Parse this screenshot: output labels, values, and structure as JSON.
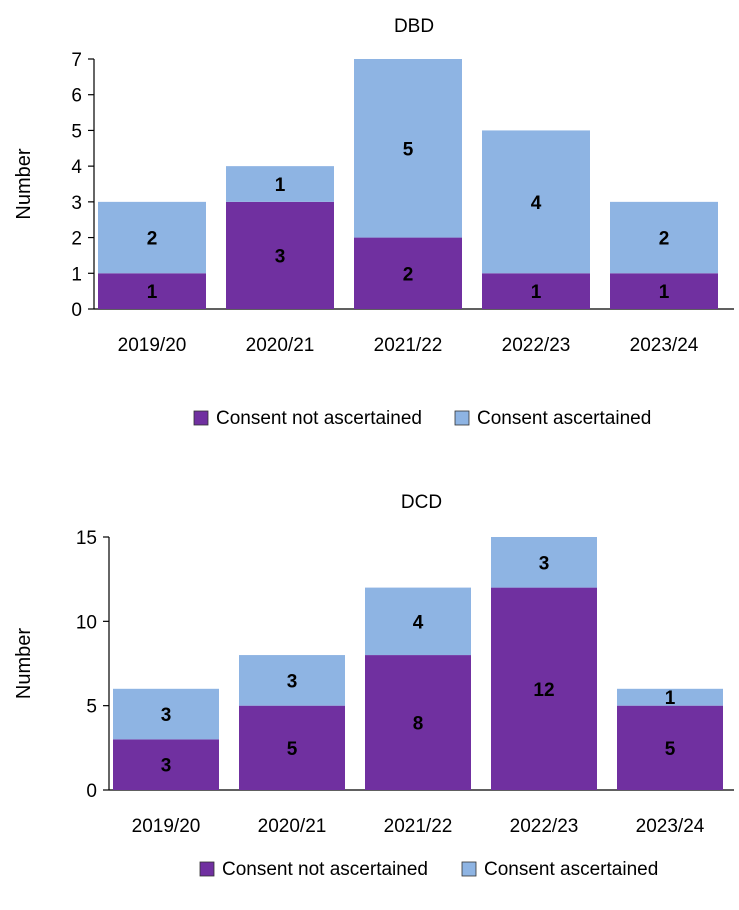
{
  "chart_data": [
    {
      "type": "bar",
      "stacked": true,
      "title": "DBD",
      "ylabel": "Number",
      "xlabel": "",
      "ylim": [
        0,
        7
      ],
      "yticks": [
        0,
        1,
        2,
        3,
        4,
        5,
        6,
        7
      ],
      "categories": [
        "2019/20",
        "2020/21",
        "2021/22",
        "2022/23",
        "2023/24"
      ],
      "series": [
        {
          "name": "Consent not ascertained",
          "color": "#7030A0",
          "values": [
            1,
            3,
            2,
            1,
            1
          ]
        },
        {
          "name": "Consent ascertained",
          "color": "#8EB4E3",
          "values": [
            2,
            1,
            5,
            4,
            2
          ]
        }
      ],
      "legend_position": "bottom"
    },
    {
      "type": "bar",
      "stacked": true,
      "title": "DCD",
      "ylabel": "Number",
      "xlabel": "",
      "ylim": [
        0,
        15
      ],
      "yticks": [
        0,
        5,
        10,
        15
      ],
      "categories": [
        "2019/20",
        "2020/21",
        "2021/22",
        "2022/23",
        "2023/24"
      ],
      "series": [
        {
          "name": "Consent not ascertained",
          "color": "#7030A0",
          "values": [
            3,
            5,
            8,
            12,
            5
          ]
        },
        {
          "name": "Consent ascertained",
          "color": "#8EB4E3",
          "values": [
            3,
            3,
            4,
            3,
            1
          ]
        }
      ],
      "legend_position": "bottom"
    }
  ]
}
